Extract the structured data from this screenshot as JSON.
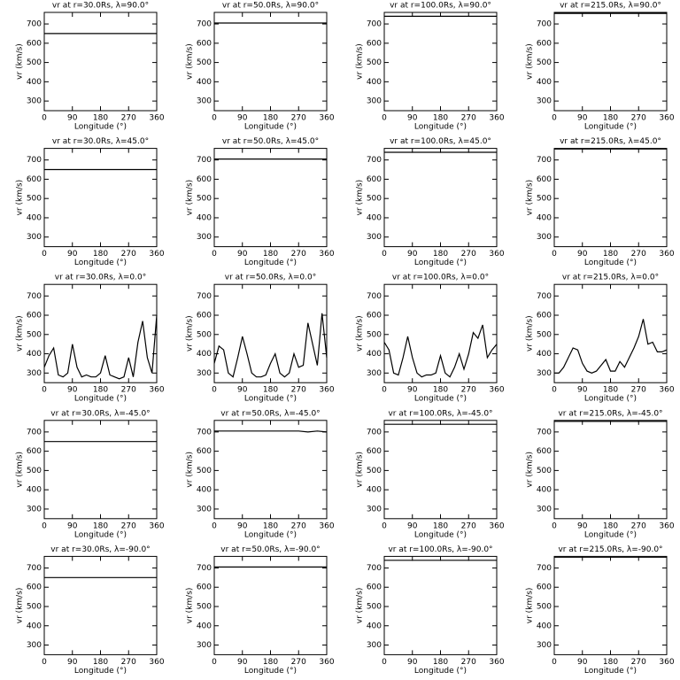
{
  "chart_data": [
    {
      "type": "line",
      "title": "vr at r=30.0Rs, λ=90.0°",
      "xlabel": "Longitude (°)",
      "ylabel": "vr (km/s)",
      "x": [
        0,
        360
      ],
      "values": [
        650,
        650
      ],
      "color": "#000000",
      "xlim": [
        0,
        360
      ],
      "ylim": [
        250,
        760
      ],
      "xticks": [
        0,
        90,
        180,
        270,
        360
      ],
      "yticks": [
        300,
        400,
        500,
        600,
        700
      ]
    },
    {
      "type": "line",
      "title": "vr at r=50.0Rs, λ=90.0°",
      "xlabel": "Longitude (°)",
      "ylabel": "vr (km/s)",
      "x": [
        0,
        360
      ],
      "values": [
        705,
        705
      ],
      "color": "#000000",
      "xlim": [
        0,
        360
      ],
      "ylim": [
        250,
        760
      ],
      "xticks": [
        0,
        90,
        180,
        270,
        360
      ],
      "yticks": [
        300,
        400,
        500,
        600,
        700
      ]
    },
    {
      "type": "line",
      "title": "vr at r=100.0Rs, λ=90.0°",
      "xlabel": "Longitude (°)",
      "ylabel": "vr (km/s)",
      "x": [
        0,
        360
      ],
      "values": [
        740,
        740
      ],
      "color": "#000000",
      "xlim": [
        0,
        360
      ],
      "ylim": [
        250,
        760
      ],
      "xticks": [
        0,
        90,
        180,
        270,
        360
      ],
      "yticks": [
        300,
        400,
        500,
        600,
        700
      ]
    },
    {
      "type": "line",
      "title": "vr at r=215.0Rs, λ=90.0°",
      "xlabel": "Longitude (°)",
      "ylabel": "vr (km/s)",
      "x": [
        0,
        360
      ],
      "values": [
        755,
        755
      ],
      "color": "#000000",
      "xlim": [
        0,
        360
      ],
      "ylim": [
        250,
        760
      ],
      "xticks": [
        0,
        90,
        180,
        270,
        360
      ],
      "yticks": [
        300,
        400,
        500,
        600,
        700
      ]
    },
    {
      "type": "line",
      "title": "vr at r=30.0Rs, λ=45.0°",
      "xlabel": "Longitude (°)",
      "ylabel": "vr (km/s)",
      "x": [
        0,
        360
      ],
      "values": [
        650,
        650
      ],
      "color": "#000000",
      "xlim": [
        0,
        360
      ],
      "ylim": [
        250,
        760
      ],
      "xticks": [
        0,
        90,
        180,
        270,
        360
      ],
      "yticks": [
        300,
        400,
        500,
        600,
        700
      ]
    },
    {
      "type": "line",
      "title": "vr at r=50.0Rs, λ=45.0°",
      "xlabel": "Longitude (°)",
      "ylabel": "vr (km/s)",
      "x": [
        0,
        360
      ],
      "values": [
        705,
        705
      ],
      "color": "#000000",
      "xlim": [
        0,
        360
      ],
      "ylim": [
        250,
        760
      ],
      "xticks": [
        0,
        90,
        180,
        270,
        360
      ],
      "yticks": [
        300,
        400,
        500,
        600,
        700
      ]
    },
    {
      "type": "line",
      "title": "vr at r=100.0Rs, λ=45.0°",
      "xlabel": "Longitude (°)",
      "ylabel": "vr (km/s)",
      "x": [
        0,
        360
      ],
      "values": [
        740,
        740
      ],
      "color": "#000000",
      "xlim": [
        0,
        360
      ],
      "ylim": [
        250,
        760
      ],
      "xticks": [
        0,
        90,
        180,
        270,
        360
      ],
      "yticks": [
        300,
        400,
        500,
        600,
        700
      ]
    },
    {
      "type": "line",
      "title": "vr at r=215.0Rs, λ=45.0°",
      "xlabel": "Longitude (°)",
      "ylabel": "vr (km/s)",
      "x": [
        0,
        360
      ],
      "values": [
        757,
        757
      ],
      "color": "#000000",
      "xlim": [
        0,
        360
      ],
      "ylim": [
        250,
        760
      ],
      "xticks": [
        0,
        90,
        180,
        270,
        360
      ],
      "yticks": [
        300,
        400,
        500,
        600,
        700
      ]
    },
    {
      "type": "line",
      "title": "vr at r=30.0Rs, λ=0.0°",
      "xlabel": "Longitude (°)",
      "ylabel": "vr (km/s)",
      "x": [
        0,
        15,
        30,
        45,
        60,
        75,
        90,
        105,
        120,
        135,
        150,
        165,
        180,
        195,
        210,
        225,
        240,
        255,
        270,
        285,
        300,
        315,
        330,
        345,
        360
      ],
      "values": [
        330,
        390,
        430,
        290,
        280,
        300,
        450,
        330,
        280,
        290,
        280,
        280,
        300,
        390,
        290,
        280,
        270,
        280,
        380,
        280,
        460,
        570,
        380,
        300,
        600
      ],
      "color": "#000000",
      "xlim": [
        0,
        360
      ],
      "ylim": [
        250,
        760
      ],
      "xticks": [
        0,
        90,
        180,
        270,
        360
      ],
      "yticks": [
        300,
        400,
        500,
        600,
        700
      ]
    },
    {
      "type": "line",
      "title": "vr at r=50.0Rs, λ=0.0°",
      "xlabel": "Longitude (°)",
      "ylabel": "vr (km/s)",
      "x": [
        0,
        15,
        30,
        45,
        60,
        75,
        90,
        105,
        120,
        135,
        150,
        165,
        180,
        195,
        210,
        225,
        240,
        255,
        270,
        285,
        300,
        315,
        330,
        345,
        360
      ],
      "values": [
        350,
        440,
        420,
        300,
        280,
        380,
        490,
        400,
        300,
        280,
        280,
        290,
        350,
        400,
        300,
        280,
        300,
        400,
        330,
        340,
        560,
        450,
        340,
        610,
        380
      ],
      "color": "#000000",
      "xlim": [
        0,
        360
      ],
      "ylim": [
        250,
        760
      ],
      "xticks": [
        0,
        90,
        180,
        270,
        360
      ],
      "yticks": [
        300,
        400,
        500,
        600,
        700
      ]
    },
    {
      "type": "line",
      "title": "vr at r=100.0Rs, λ=0.0°",
      "xlabel": "Longitude (°)",
      "ylabel": "vr (km/s)",
      "x": [
        0,
        15,
        30,
        45,
        60,
        75,
        90,
        105,
        120,
        135,
        150,
        165,
        180,
        195,
        210,
        225,
        240,
        255,
        270,
        285,
        300,
        315,
        330,
        345,
        360
      ],
      "values": [
        460,
        420,
        300,
        290,
        380,
        490,
        380,
        300,
        280,
        290,
        290,
        300,
        390,
        300,
        280,
        330,
        400,
        320,
        400,
        510,
        480,
        550,
        380,
        420,
        450
      ],
      "color": "#000000",
      "xlim": [
        0,
        360
      ],
      "ylim": [
        250,
        760
      ],
      "xticks": [
        0,
        90,
        180,
        270,
        360
      ],
      "yticks": [
        300,
        400,
        500,
        600,
        700
      ]
    },
    {
      "type": "line",
      "title": "vr at r=215.0Rs, λ=0.0°",
      "xlabel": "Longitude (°)",
      "ylabel": "vr (km/s)",
      "x": [
        0,
        15,
        30,
        45,
        60,
        75,
        90,
        105,
        120,
        135,
        150,
        165,
        180,
        195,
        210,
        225,
        240,
        255,
        270,
        285,
        300,
        315,
        330,
        345,
        360
      ],
      "values": [
        300,
        300,
        330,
        380,
        430,
        420,
        350,
        310,
        300,
        310,
        340,
        370,
        310,
        310,
        360,
        330,
        380,
        430,
        490,
        580,
        450,
        460,
        410,
        410,
        420
      ],
      "color": "#000000",
      "xlim": [
        0,
        360
      ],
      "ylim": [
        250,
        760
      ],
      "xticks": [
        0,
        90,
        180,
        270,
        360
      ],
      "yticks": [
        300,
        400,
        500,
        600,
        700
      ]
    },
    {
      "type": "line",
      "title": "vr at r=30.0Rs, λ=-45.0°",
      "xlabel": "Longitude (°)",
      "ylabel": "vr (km/s)",
      "x": [
        0,
        360
      ],
      "values": [
        650,
        650
      ],
      "color": "#000000",
      "xlim": [
        0,
        360
      ],
      "ylim": [
        250,
        760
      ],
      "xticks": [
        0,
        90,
        180,
        270,
        360
      ],
      "yticks": [
        300,
        400,
        500,
        600,
        700
      ]
    },
    {
      "type": "line",
      "title": "vr at r=50.0Rs, λ=-45.0°",
      "xlabel": "Longitude (°)",
      "ylabel": "vr (km/s)",
      "x": [
        0,
        270,
        300,
        330,
        360
      ],
      "values": [
        705,
        705,
        700,
        705,
        700
      ],
      "color": "#000000",
      "xlim": [
        0,
        360
      ],
      "ylim": [
        250,
        760
      ],
      "xticks": [
        0,
        90,
        180,
        270,
        360
      ],
      "yticks": [
        300,
        400,
        500,
        600,
        700
      ]
    },
    {
      "type": "line",
      "title": "vr at r=100.0Rs, λ=-45.0°",
      "xlabel": "Longitude (°)",
      "ylabel": "vr (km/s)",
      "x": [
        0,
        360
      ],
      "values": [
        740,
        740
      ],
      "color": "#000000",
      "xlim": [
        0,
        360
      ],
      "ylim": [
        250,
        760
      ],
      "xticks": [
        0,
        90,
        180,
        270,
        360
      ],
      "yticks": [
        300,
        400,
        500,
        600,
        700
      ]
    },
    {
      "type": "line",
      "title": "vr at r=215.0Rs, λ=-45.0°",
      "xlabel": "Longitude (°)",
      "ylabel": "vr (km/s)",
      "x": [
        0,
        360
      ],
      "values": [
        755,
        755
      ],
      "color": "#000000",
      "xlim": [
        0,
        360
      ],
      "ylim": [
        250,
        760
      ],
      "xticks": [
        0,
        90,
        180,
        270,
        360
      ],
      "yticks": [
        300,
        400,
        500,
        600,
        700
      ]
    },
    {
      "type": "line",
      "title": "vr at r=30.0Rs, λ=-90.0°",
      "xlabel": "Longitude (°)",
      "ylabel": "vr (km/s)",
      "x": [
        0,
        360
      ],
      "values": [
        650,
        650
      ],
      "color": "#000000",
      "xlim": [
        0,
        360
      ],
      "ylim": [
        250,
        760
      ],
      "xticks": [
        0,
        90,
        180,
        270,
        360
      ],
      "yticks": [
        300,
        400,
        500,
        600,
        700
      ]
    },
    {
      "type": "line",
      "title": "vr at r=50.0Rs, λ=-90.0°",
      "xlabel": "Longitude (°)",
      "ylabel": "vr (km/s)",
      "x": [
        0,
        360
      ],
      "values": [
        705,
        705
      ],
      "color": "#000000",
      "xlim": [
        0,
        360
      ],
      "ylim": [
        250,
        760
      ],
      "xticks": [
        0,
        90,
        180,
        270,
        360
      ],
      "yticks": [
        300,
        400,
        500,
        600,
        700
      ]
    },
    {
      "type": "line",
      "title": "vr at r=100.0Rs, λ=-90.0°",
      "xlabel": "Longitude (°)",
      "ylabel": "vr (km/s)",
      "x": [
        0,
        360
      ],
      "values": [
        740,
        740
      ],
      "color": "#000000",
      "xlim": [
        0,
        360
      ],
      "ylim": [
        250,
        760
      ],
      "xticks": [
        0,
        90,
        180,
        270,
        360
      ],
      "yticks": [
        300,
        400,
        500,
        600,
        700
      ]
    },
    {
      "type": "line",
      "title": "vr at r=215.0Rs, λ=-90.0°",
      "xlabel": "Longitude (°)",
      "ylabel": "vr (km/s)",
      "x": [
        0,
        360
      ],
      "values": [
        756,
        756
      ],
      "color": "#000000",
      "xlim": [
        0,
        360
      ],
      "ylim": [
        250,
        760
      ],
      "xticks": [
        0,
        90,
        180,
        270,
        360
      ],
      "yticks": [
        300,
        400,
        500,
        600,
        700
      ]
    }
  ]
}
